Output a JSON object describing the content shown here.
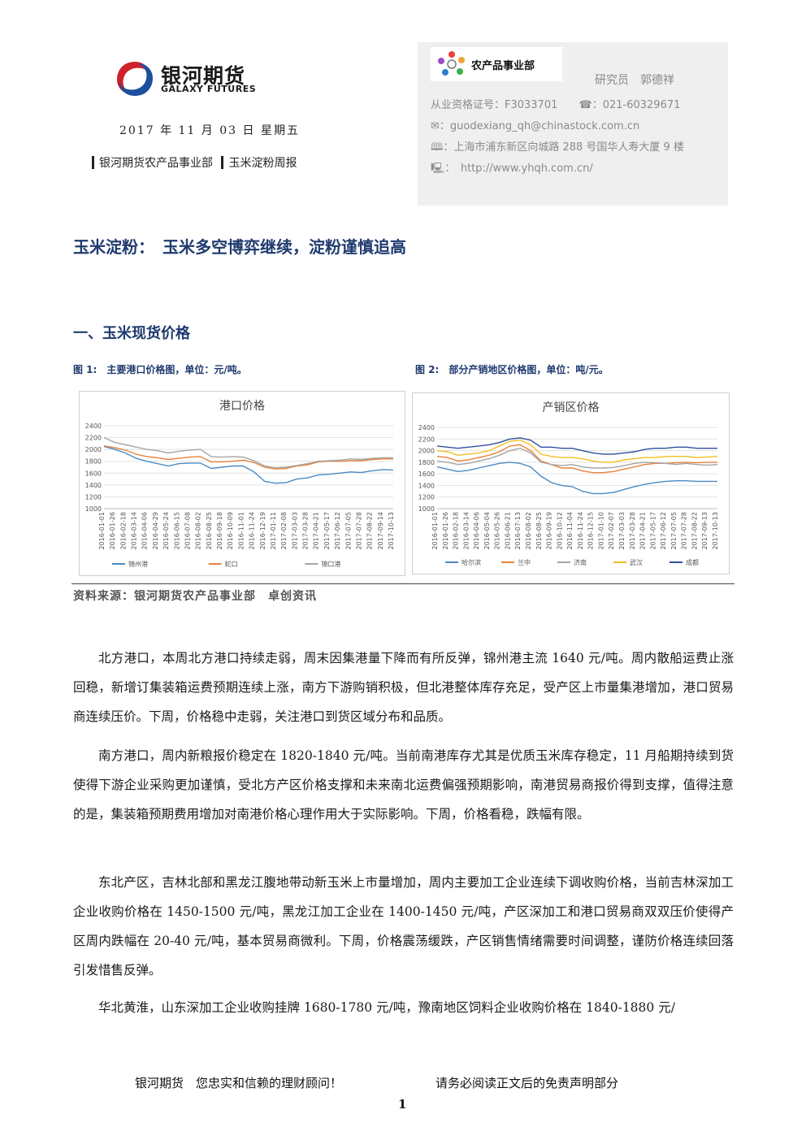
{
  "header": {
    "brand_cn": "银河期货",
    "brand_en": "GALAXY FUTURES",
    "date": "2017 年 11 月 03 日 星期五",
    "dept": "银河期货农产品事业部",
    "report_type": "玉米淀粉周报"
  },
  "contact": {
    "dept_logo_text": "农产品事业部",
    "analyst": "研究员　郭德祥",
    "license": "从业资格证号：F3033701",
    "phone": "☎：021-60329671",
    "email": "✉：guodexiang_qh@chinastock.com.cn",
    "address": "🕮：上海市浦东新区向城路 288 号国华人寿大厦 9 楼",
    "website": "🖳：　http://www.yhqh.com.cn/"
  },
  "main_title": "玉米淀粉：　玉米多空博弈继续，淀粉谨慎追高",
  "section_title": "一、玉米现货价格",
  "figures": {
    "fig1_caption": "图 1:　主要港口价格图，单位：元/吨。",
    "fig2_caption": "图 2:　部分产销地区价格图，单位：吨/元。"
  },
  "chart_data": [
    {
      "type": "line",
      "title": "港口价格",
      "ylim": [
        1000,
        2400
      ],
      "yticks": [
        "2400",
        "2200",
        "2000",
        "1800",
        "1600",
        "1400",
        "1200",
        "1000"
      ],
      "x": [
        "2016-01-01",
        "2016-01-26",
        "2016-02-18",
        "2016-03-14",
        "2016-04-06",
        "2016-04-29",
        "2016-05-24",
        "2016-06-15",
        "2016-07-08",
        "2016-08-02",
        "2016-08-25",
        "2016-09-18",
        "2016-10-09",
        "2016-11-01",
        "2016-11-24",
        "2016-12-19",
        "2017-01-11",
        "2017-02-08",
        "2017-03-03",
        "2017-03-28",
        "2017-04-21",
        "2017-05-17",
        "2017-06-12",
        "2017-07-05",
        "2017-07-28",
        "2017-08-22",
        "2017-09-14",
        "2017-10-13"
      ],
      "legend_position": "bottom",
      "grid": true,
      "series": [
        {
          "name": "锦州港",
          "color": "#4a8bc4",
          "values": [
            2050,
            2000,
            1940,
            1850,
            1800,
            1760,
            1720,
            1760,
            1770,
            1770,
            1680,
            1700,
            1720,
            1720,
            1620,
            1460,
            1430,
            1440,
            1500,
            1520,
            1570,
            1580,
            1600,
            1620,
            1610,
            1640,
            1660,
            1650
          ]
        },
        {
          "name": "蛇口",
          "color": "#e6823b",
          "values": [
            2060,
            2030,
            1990,
            1920,
            1880,
            1860,
            1830,
            1850,
            1870,
            1880,
            1790,
            1790,
            1800,
            1820,
            1780,
            1700,
            1670,
            1680,
            1720,
            1740,
            1790,
            1800,
            1800,
            1810,
            1810,
            1830,
            1840,
            1840
          ]
        },
        {
          "name": "锦口港",
          "color": "#a5a5a5",
          "values": [
            2200,
            2120,
            2080,
            2040,
            2000,
            1980,
            1940,
            1970,
            1990,
            2000,
            1880,
            1870,
            1880,
            1870,
            1810,
            1720,
            1690,
            1700,
            1730,
            1760,
            1800,
            1810,
            1820,
            1840,
            1830,
            1850,
            1860,
            1860
          ]
        }
      ]
    },
    {
      "type": "line",
      "title": "产销区价格",
      "ylim": [
        1000,
        2400
      ],
      "yticks": [
        "2400",
        "2200",
        "2000",
        "1800",
        "1600",
        "1400",
        "1200",
        "1000"
      ],
      "x": [
        "2016-01-01",
        "2016-01-26",
        "2016-02-18",
        "2016-03-14",
        "2016-04-06",
        "2016-05-04",
        "2016-05-26",
        "2016-06-21",
        "2016-07-13",
        "2016-08-02",
        "2016-08-25",
        "2016-09-19",
        "2016-10-12",
        "2016-11-04",
        "2016-11-24",
        "2016-12-15",
        "2017-01-10",
        "2017-02-07",
        "2017-03-03",
        "2017-03-28",
        "2017-04-21",
        "2017-05-17",
        "2017-06-12",
        "2017-07-05",
        "2017-07-28",
        "2017-08-22",
        "2017-09-13",
        "2017-10-13"
      ],
      "legend_position": "bottom",
      "grid": true,
      "series": [
        {
          "name": "哈尔滨",
          "color": "#4a8bc4",
          "values": [
            1720,
            1680,
            1640,
            1660,
            1700,
            1740,
            1780,
            1800,
            1780,
            1720,
            1560,
            1450,
            1400,
            1380,
            1300,
            1260,
            1260,
            1280,
            1330,
            1380,
            1420,
            1450,
            1470,
            1480,
            1480,
            1470,
            1470,
            1470
          ]
        },
        {
          "name": "兰中",
          "color": "#e6823b",
          "values": [
            1900,
            1880,
            1820,
            1840,
            1880,
            1920,
            1980,
            2080,
            2100,
            2000,
            1820,
            1760,
            1700,
            1700,
            1650,
            1620,
            1620,
            1640,
            1680,
            1720,
            1760,
            1780,
            1780,
            1790,
            1800,
            1790,
            1800,
            1800
          ]
        },
        {
          "name": "济南",
          "color": "#a5a5a5",
          "values": [
            1820,
            1800,
            1760,
            1780,
            1820,
            1860,
            1920,
            2000,
            2040,
            1960,
            1800,
            1760,
            1740,
            1760,
            1720,
            1700,
            1700,
            1710,
            1740,
            1780,
            1800,
            1790,
            1780,
            1760,
            1780,
            1760,
            1750,
            1760
          ]
        },
        {
          "name": "武汉",
          "color": "#f0c020",
          "values": [
            2000,
            1980,
            1920,
            1940,
            1960,
            2000,
            2080,
            2160,
            2180,
            2100,
            1940,
            1900,
            1880,
            1880,
            1860,
            1820,
            1800,
            1800,
            1840,
            1860,
            1880,
            1880,
            1900,
            1900,
            1900,
            1880,
            1890,
            1900
          ]
        },
        {
          "name": "成都",
          "color": "#2f4f9e",
          "values": [
            2080,
            2060,
            2040,
            2060,
            2080,
            2100,
            2140,
            2200,
            2220,
            2180,
            2060,
            2060,
            2040,
            2040,
            2000,
            1960,
            1940,
            1940,
            1960,
            1980,
            2020,
            2040,
            2040,
            2060,
            2060,
            2040,
            2040,
            2040
          ]
        }
      ]
    }
  ],
  "source": "资料来源：银河期货农产品事业部　卓创资讯",
  "paragraphs": [
    "北方港口，本周北方港口持续走弱，周末因集港量下降而有所反弹，锦州港主流 1640 元/吨。周内散船运费止涨回稳，新增订集装箱运费预期连续上涨，南方下游购销积极，但北港整体库存充足，受产区上市量集港增加，港口贸易商连续压价。下周，价格稳中走弱，关注港口到货区域分布和品质。",
    "南方港口，周内新粮报价稳定在 1820-1840 元/吨。当前南港库存尤其是优质玉米库存稳定，11 月船期持续到货使得下游企业采购更加谨慎，受北方产区价格支撑和未来南北运费偏强预期影响，南港贸易商报价得到支撑，值得注意的是，集装箱预期费用增加对南港价格心理作用大于实际影响。下周，价格看稳，跌幅有限。",
    "东北产区，吉林北部和黑龙江腹地带动新玉米上市量增加，周内主要加工企业连续下调收购价格，当前吉林深加工企业收购价格在 1450-1500 元/吨，黑龙江加工企业在 1400-1450 元/吨，产区深加工和港口贸易商双双压价使得产区周内跌幅在 20-40 元/吨，基本贸易商微利。下周，价格震荡缓跌，产区销售情绪需要时间调整，谨防价格连续回落引发惜售反弹。",
    "华北黄淮，山东深加工企业收购挂牌 1680-1780 元/吨，豫南地区饲料企业收购价格在 1840-1880 元/"
  ],
  "footer": {
    "slogan": "银河期货　您忠实和信赖的理财顾问！",
    "disclaimer": "请务必阅读正文后的免责声明部分",
    "page": "1"
  },
  "colors": {
    "title_blue": "#1f3a6e",
    "brand_red": "#d0202a",
    "brand_blue": "#1d4f9c"
  }
}
